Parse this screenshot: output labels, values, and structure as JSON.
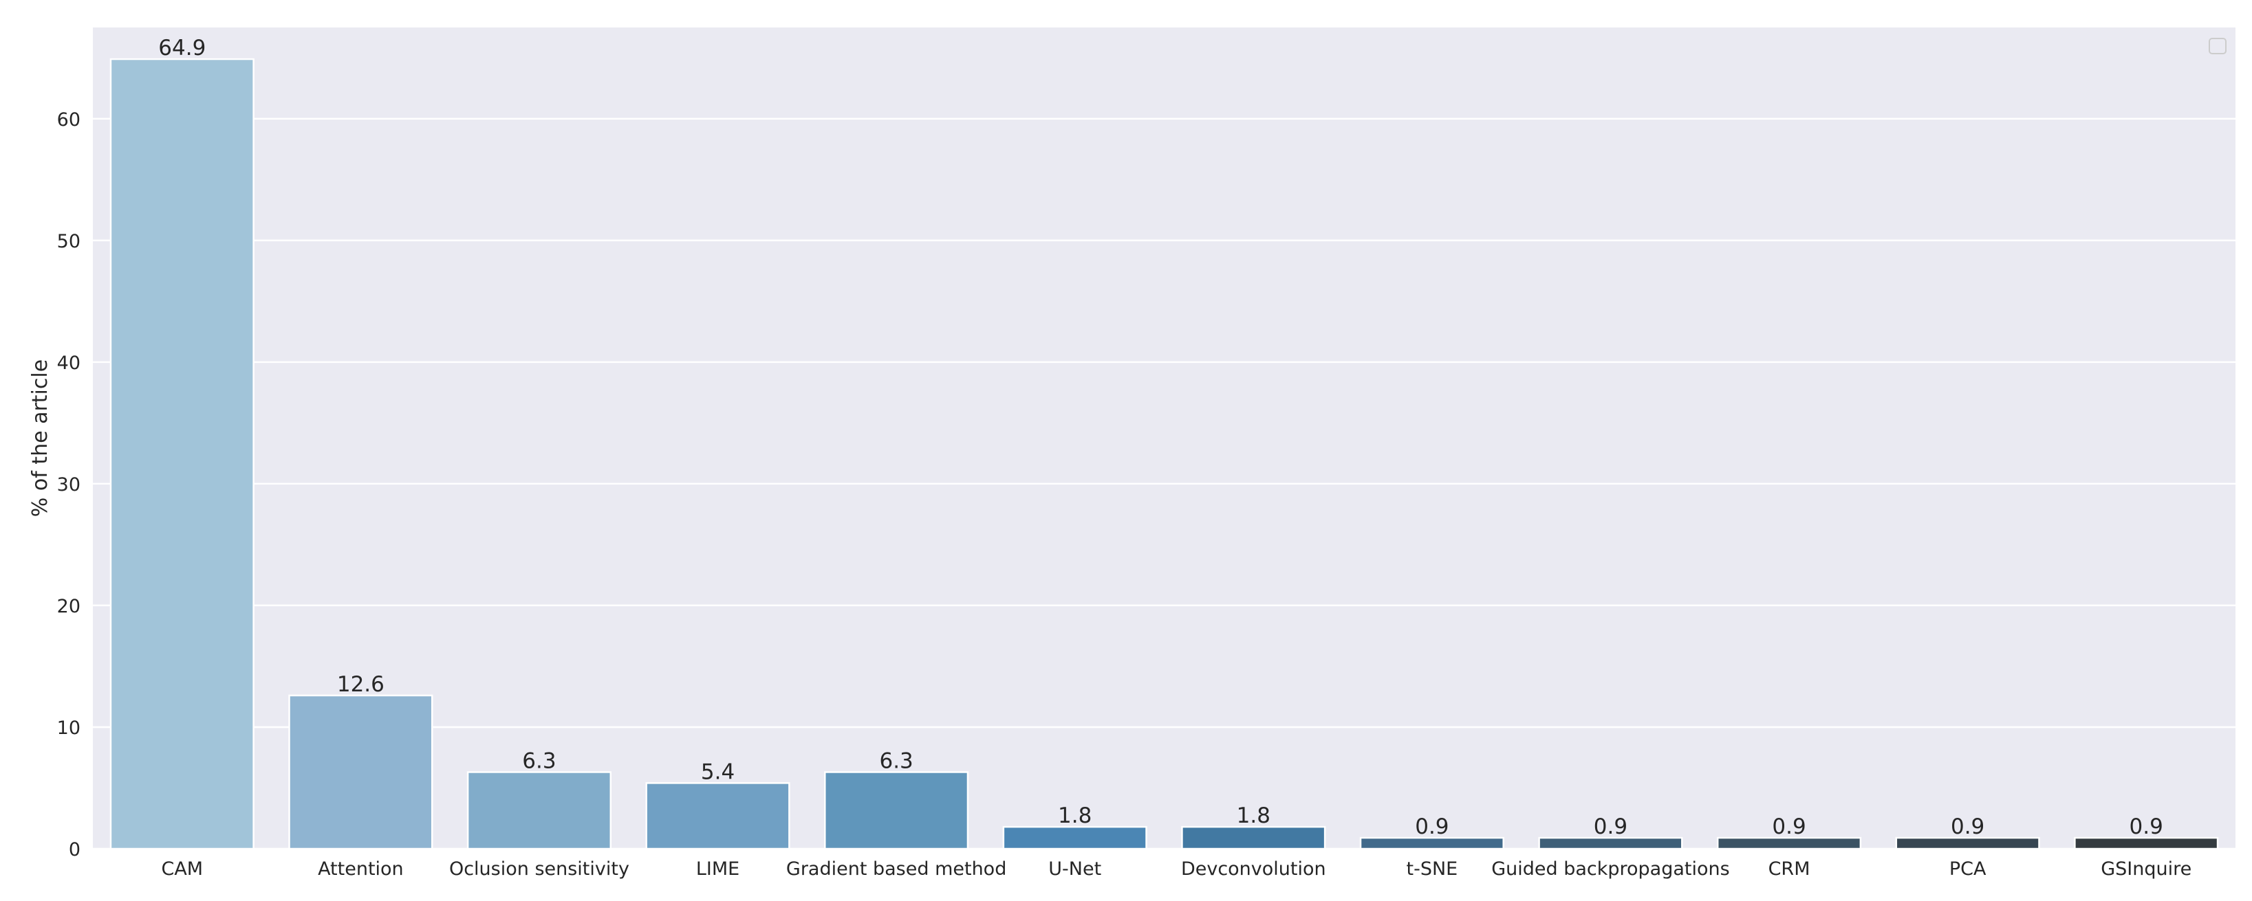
{
  "chart_data": {
    "type": "bar",
    "categories": [
      "CAM",
      "Attention",
      "Oclusion sensitivity",
      "LIME",
      "Gradient based method",
      "U-Net",
      "Devconvolution",
      "t-SNE",
      "Guided backpropagations",
      "CRM",
      "PCA",
      "GSInquire"
    ],
    "values": [
      64.9,
      12.6,
      6.3,
      5.4,
      6.3,
      1.8,
      1.8,
      0.9,
      0.9,
      0.9,
      0.9,
      0.9
    ],
    "value_labels": [
      "64.9",
      "12.6",
      "6.3",
      "5.4",
      "6.3",
      "1.8",
      "1.8",
      "0.9",
      "0.9",
      "0.9",
      "0.9",
      "0.9"
    ],
    "colors": [
      "#a1c4d9",
      "#8fb4d1",
      "#81acca",
      "#70a0c4",
      "#6096bb",
      "#4b86b4",
      "#4279a2",
      "#416a8b",
      "#3e5f78",
      "#3b5364",
      "#374652",
      "#343b40"
    ],
    "ylabel": "% of the article",
    "xlabel": "",
    "ylim": [
      0,
      67.5
    ],
    "yticks": [
      0,
      10,
      20,
      30,
      40,
      50,
      60
    ],
    "ytick_labels": [
      "0",
      "10",
      "20",
      "30",
      "40",
      "50",
      "60"
    ],
    "grid": true,
    "legend": "top-right (empty)",
    "background": "#eaeaf2",
    "grid_color": "#ffffff"
  }
}
